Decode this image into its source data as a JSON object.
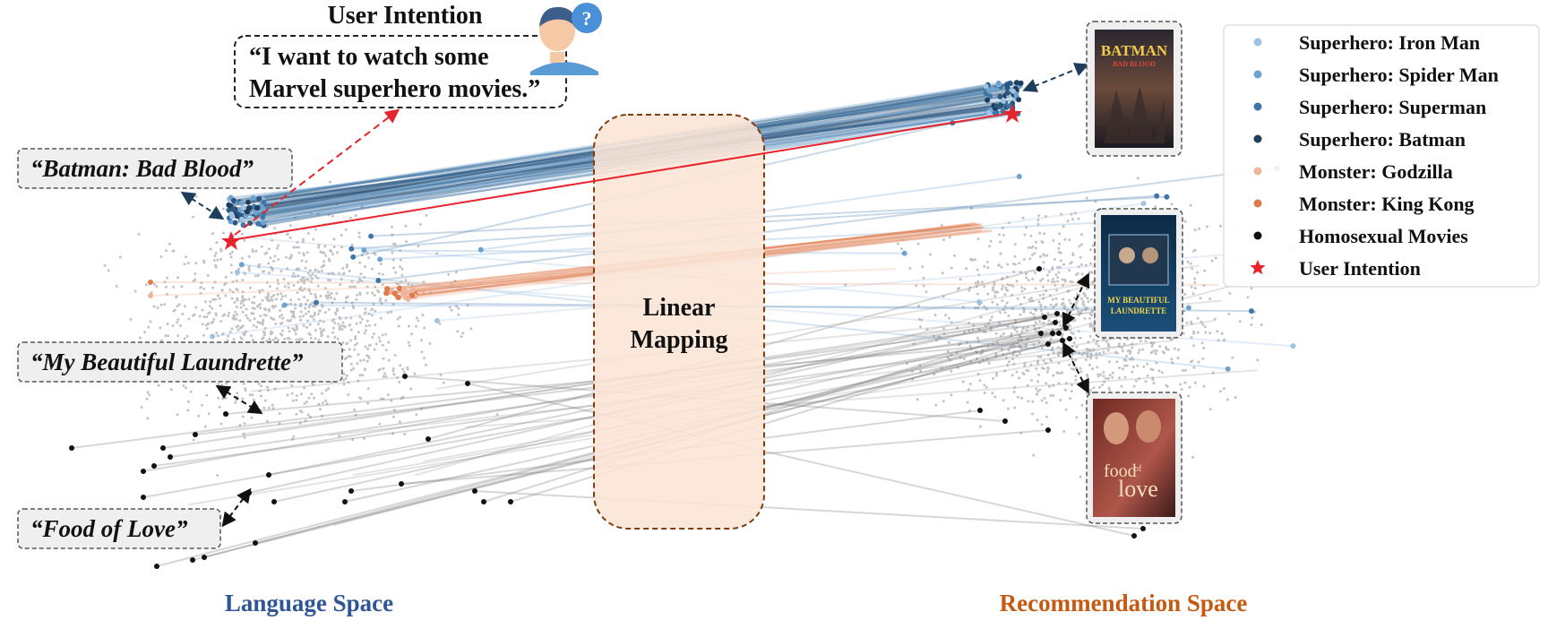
{
  "title": "User Intention",
  "user_quote_line1": "“I want to watch some",
  "user_quote_line2": "Marvel superhero movies.”",
  "callouts": {
    "batman": "“Batman: Bad Blood”",
    "laundrette": "“My Beautiful Laundrette”",
    "food": "“Food of Love”"
  },
  "center_label_line1": "Linear",
  "center_label_line2": "Mapping",
  "left_space": "Language Space",
  "right_space": "Recommendation Space",
  "legend": [
    {
      "label": "Superhero: Iron Man",
      "color": "#9ec3e3",
      "marker": "dot"
    },
    {
      "label": "Superhero: Spider Man",
      "color": "#6ea3cf",
      "marker": "dot"
    },
    {
      "label": "Superhero: Superman",
      "color": "#3f76a8",
      "marker": "dot"
    },
    {
      "label": "Superhero: Batman",
      "color": "#1e3d5c",
      "marker": "dot"
    },
    {
      "label": "Monster: Godzilla",
      "color": "#efb49b",
      "marker": "dot"
    },
    {
      "label": "Monster: King Kong",
      "color": "#e07a4a",
      "marker": "dot"
    },
    {
      "label": "Homosexual Movies",
      "color": "#111111",
      "marker": "dot"
    },
    {
      "label": "User Intention",
      "color": "#e8232b",
      "marker": "star"
    }
  ],
  "posters": {
    "batman": {
      "title": "BATMAN",
      "subtitle": "BAD BLOOD"
    },
    "laundrette": {
      "line1": "MY BEAUTIFUL",
      "line2": "LAUNDRETTE"
    },
    "food": {
      "line1": "food",
      "line2": "of",
      "line3": "love"
    }
  },
  "colors": {
    "left_label": "#2f5597",
    "right_label": "#c55a11",
    "mapping_fill": "#fbe5d6",
    "mapping_border": "#843c0c",
    "bg_points": "#c3c3c3",
    "user_line": "#e8232b"
  }
}
